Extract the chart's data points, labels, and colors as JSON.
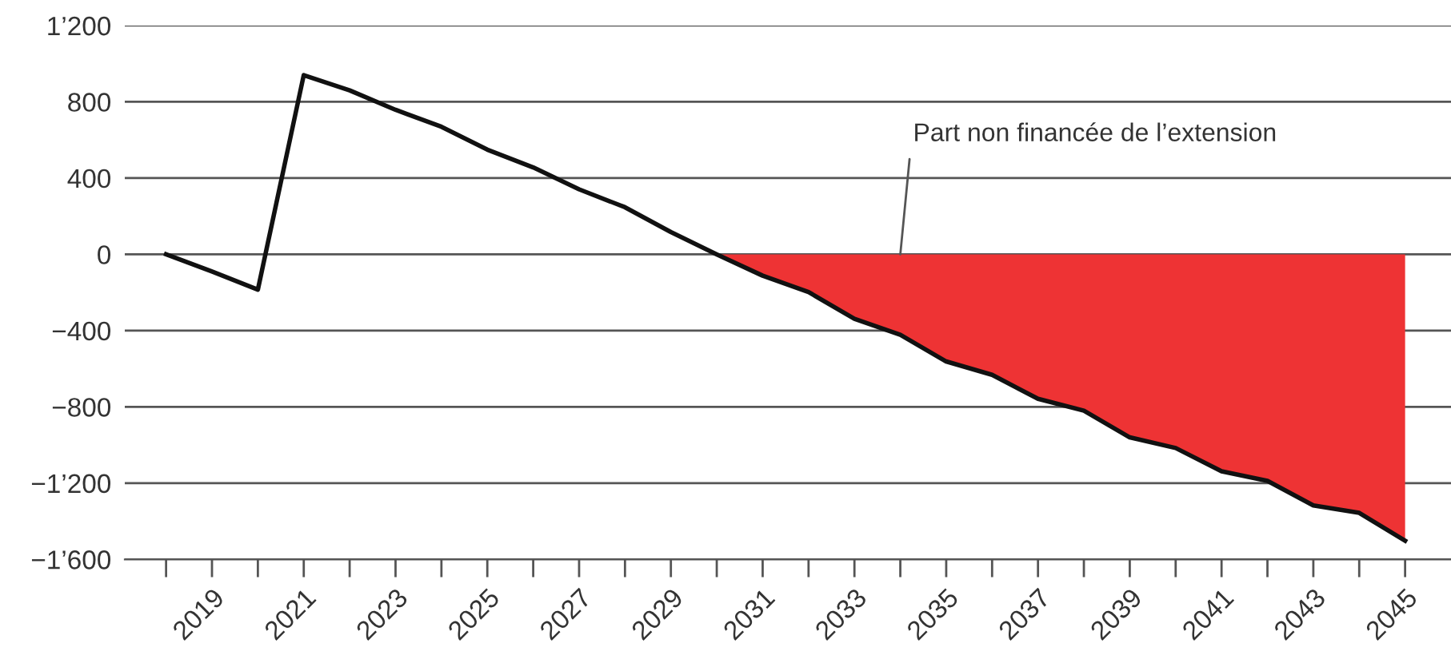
{
  "chart_data": {
    "type": "line",
    "x": [
      2018,
      2019,
      2020,
      2021,
      2022,
      2023,
      2024,
      2025,
      2026,
      2027,
      2028,
      2029,
      2030,
      2031,
      2032,
      2033,
      2034,
      2035,
      2036,
      2037,
      2038,
      2039,
      2040,
      2041,
      2042,
      2043,
      2044,
      2045
    ],
    "series": [
      {
        "type": "area",
        "color": "#ee3334",
        "x": [
          2030,
          2031,
          2032,
          2033,
          2034,
          2035,
          2036,
          2037,
          2038,
          2039,
          2040,
          2041,
          2042,
          2043,
          2044,
          2045
        ],
        "values": [
          0,
          -112,
          -198,
          -338,
          -422,
          -562,
          -632,
          -758,
          -820,
          -960,
          -1016,
          -1138,
          -1188,
          -1317,
          -1356,
          -1502
        ]
      },
      {
        "color": "#111111",
        "values": [
          0,
          -90,
          -185,
          940,
          860,
          758,
          669,
          549,
          456,
          341,
          247,
          117,
          0,
          -112,
          -198,
          -338,
          -422,
          -562,
          -632,
          -758,
          -820,
          -960,
          -1016,
          -1138,
          -1188,
          -1317,
          -1356,
          -1502
        ]
      }
    ],
    "annotations": [
      {
        "text": "Part non financée de l’extension",
        "x": 2034,
        "y": 0
      }
    ],
    "xlim": [
      2017.1,
      2046.0
    ],
    "xticks": [
      {
        "value": 2018,
        "label": null
      },
      2019,
      {
        "value": 2020,
        "label": null
      },
      2021,
      {
        "value": 2022,
        "label": null
      },
      2023,
      {
        "value": 2024,
        "label": null
      },
      2025,
      {
        "value": 2026,
        "label": null
      },
      2027,
      {
        "value": 2028,
        "label": null
      },
      2029,
      {
        "value": 2030,
        "label": null
      },
      2031,
      {
        "value": 2032,
        "label": null
      },
      2033,
      {
        "value": 2034,
        "label": null
      },
      2035,
      {
        "value": 2036,
        "label": null
      },
      2037,
      {
        "value": 2038,
        "label": null
      },
      2039,
      {
        "value": 2040,
        "label": null
      },
      2041,
      {
        "value": 2042,
        "label": null
      },
      2043,
      {
        "value": 2044,
        "label": null
      },
      2045
    ],
    "ylim": [
      -1600,
      1200
    ],
    "yticks": [
      {
        "value": -1600,
        "label": "−1’600"
      },
      {
        "value": -1200,
        "label": "−1’200"
      },
      {
        "value": -800,
        "label": "−800"
      },
      {
        "value": -400,
        "label": "−400"
      },
      0,
      400,
      800,
      {
        "value": 1200,
        "label": "1’200"
      }
    ],
    "grid": "y",
    "marker": "none",
    "line_style": "solid"
  }
}
